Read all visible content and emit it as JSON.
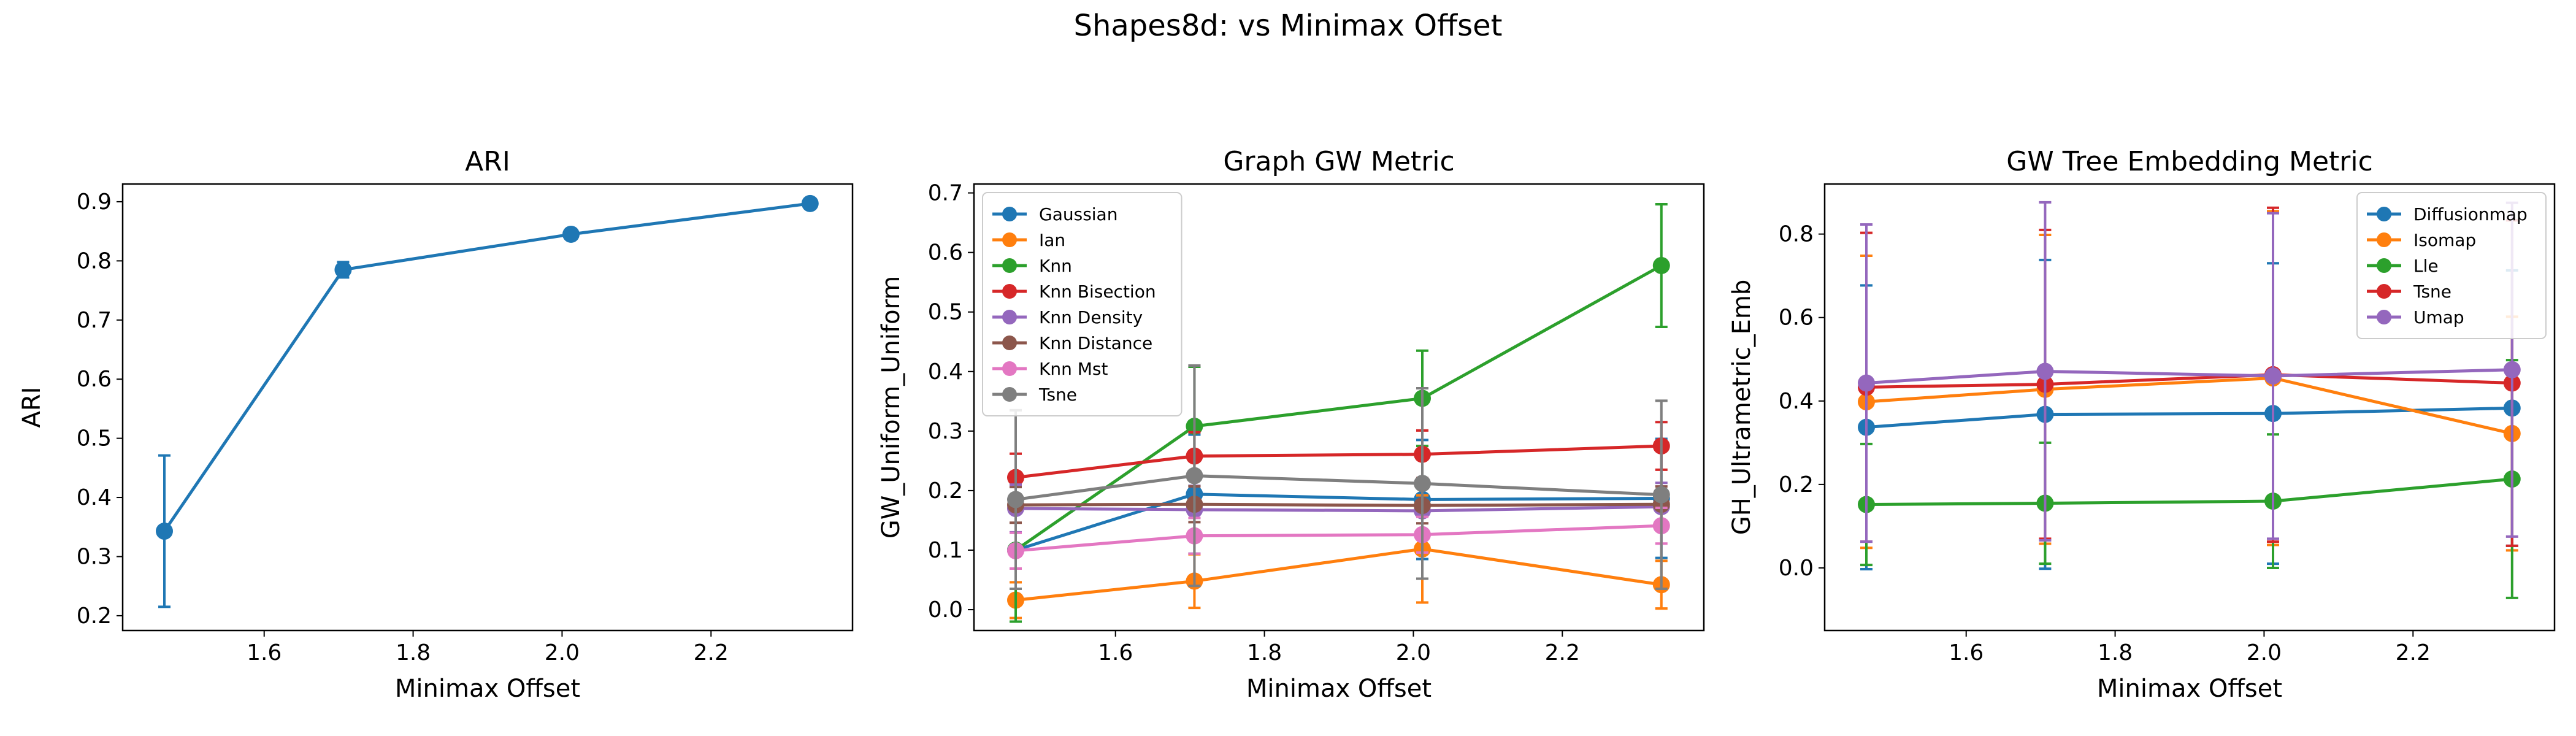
{
  "suptitle": "Shapes8d: vs Minimax Offset",
  "chart_data": [
    {
      "type": "line",
      "title": "ARI",
      "xlabel": "Minimax Offset",
      "ylabel": "ARI",
      "xlim": [
        1.41,
        2.39
      ],
      "ylim": [
        0.175,
        0.93
      ],
      "xticks": [
        1.6,
        1.8,
        2.0,
        2.2
      ],
      "yticks": [
        0.2,
        0.3,
        0.4,
        0.5,
        0.6,
        0.7,
        0.8,
        0.9
      ],
      "x": [
        1.466,
        1.706,
        2.012,
        2.333
      ],
      "series": [
        {
          "color": "#1f77b4",
          "values": [
            0.343,
            0.785,
            0.845,
            0.897
          ],
          "err": [
            0.128,
            0.013,
            0.006,
            0.004
          ]
        }
      ],
      "legend": null
    },
    {
      "type": "line",
      "title": "Graph GW Metric",
      "xlabel": "Minimax Offset",
      "ylabel": "GW_Uniform_Uniform",
      "xlim": [
        1.41,
        2.39
      ],
      "ylim": [
        -0.035,
        0.715
      ],
      "xticks": [
        1.6,
        1.8,
        2.0,
        2.2
      ],
      "yticks": [
        0.0,
        0.1,
        0.2,
        0.3,
        0.4,
        0.5,
        0.6,
        0.7
      ],
      "x": [
        1.466,
        1.706,
        2.012,
        2.333
      ],
      "series": [
        {
          "name": "Gaussian",
          "color": "#1f77b4",
          "values": [
            0.1,
            0.194,
            0.185,
            0.187
          ],
          "err": [
            0.08,
            0.1,
            0.1,
            0.1
          ]
        },
        {
          "name": "Ian",
          "color": "#ff7f0e",
          "values": [
            0.016,
            0.048,
            0.102,
            0.042
          ],
          "err": [
            0.03,
            0.045,
            0.09,
            0.04
          ]
        },
        {
          "name": "Knn",
          "color": "#2ca02c",
          "values": [
            0.1,
            0.308,
            0.355,
            0.578
          ],
          "err": [
            0.12,
            0.1,
            0.08,
            0.103
          ]
        },
        {
          "name": "Knn Bisection",
          "color": "#d62728",
          "values": [
            0.222,
            0.258,
            0.261,
            0.275
          ],
          "err": [
            0.04,
            0.04,
            0.04,
            0.04
          ]
        },
        {
          "name": "Knn Density",
          "color": "#9467bd",
          "values": [
            0.17,
            0.168,
            0.166,
            0.173
          ],
          "err": [
            0.04,
            0.04,
            0.04,
            0.04
          ]
        },
        {
          "name": "Knn Distance",
          "color": "#8c564b",
          "values": [
            0.176,
            0.177,
            0.175,
            0.177
          ],
          "err": [
            0.03,
            0.03,
            0.03,
            0.03
          ]
        },
        {
          "name": "Knn Mst",
          "color": "#e377c2",
          "values": [
            0.099,
            0.124,
            0.126,
            0.141
          ],
          "err": [
            0.03,
            0.03,
            0.03,
            0.03
          ]
        },
        {
          "name": "Tsne",
          "color": "#7f7f7f",
          "values": [
            0.185,
            0.225,
            0.212,
            0.193
          ],
          "err": [
            0.15,
            0.185,
            0.16,
            0.158
          ]
        }
      ],
      "legend": "upper left"
    },
    {
      "type": "line",
      "title": "GW Tree Embedding Metric",
      "xlabel": "Minimax Offset",
      "ylabel": "GH_Ultrametric_Emb",
      "xlim": [
        1.41,
        2.39
      ],
      "ylim": [
        -0.15,
        0.92
      ],
      "xticks": [
        1.6,
        1.8,
        2.0,
        2.2
      ],
      "yticks": [
        0.0,
        0.2,
        0.4,
        0.6,
        0.8
      ],
      "x": [
        1.466,
        1.706,
        2.012,
        2.333
      ],
      "series": [
        {
          "name": "Diffusionmap",
          "color": "#1f77b4",
          "values": [
            0.337,
            0.368,
            0.37,
            0.383
          ],
          "err": [
            0.34,
            0.37,
            0.36,
            0.33
          ]
        },
        {
          "name": "Isomap",
          "color": "#ff7f0e",
          "values": [
            0.398,
            0.428,
            0.455,
            0.322
          ],
          "err": [
            0.35,
            0.37,
            0.4,
            0.28
          ]
        },
        {
          "name": "Lle",
          "color": "#2ca02c",
          "values": [
            0.152,
            0.155,
            0.16,
            0.213
          ],
          "err": [
            0.145,
            0.145,
            0.16,
            0.285
          ]
        },
        {
          "name": "Tsne",
          "color": "#d62728",
          "values": [
            0.433,
            0.44,
            0.463,
            0.443
          ],
          "err": [
            0.37,
            0.37,
            0.4,
            0.39
          ]
        },
        {
          "name": "Umap",
          "color": "#9467bd",
          "values": [
            0.443,
            0.471,
            0.46,
            0.475
          ],
          "err": [
            0.38,
            0.405,
            0.39,
            0.4
          ]
        }
      ],
      "legend": "upper right"
    }
  ]
}
